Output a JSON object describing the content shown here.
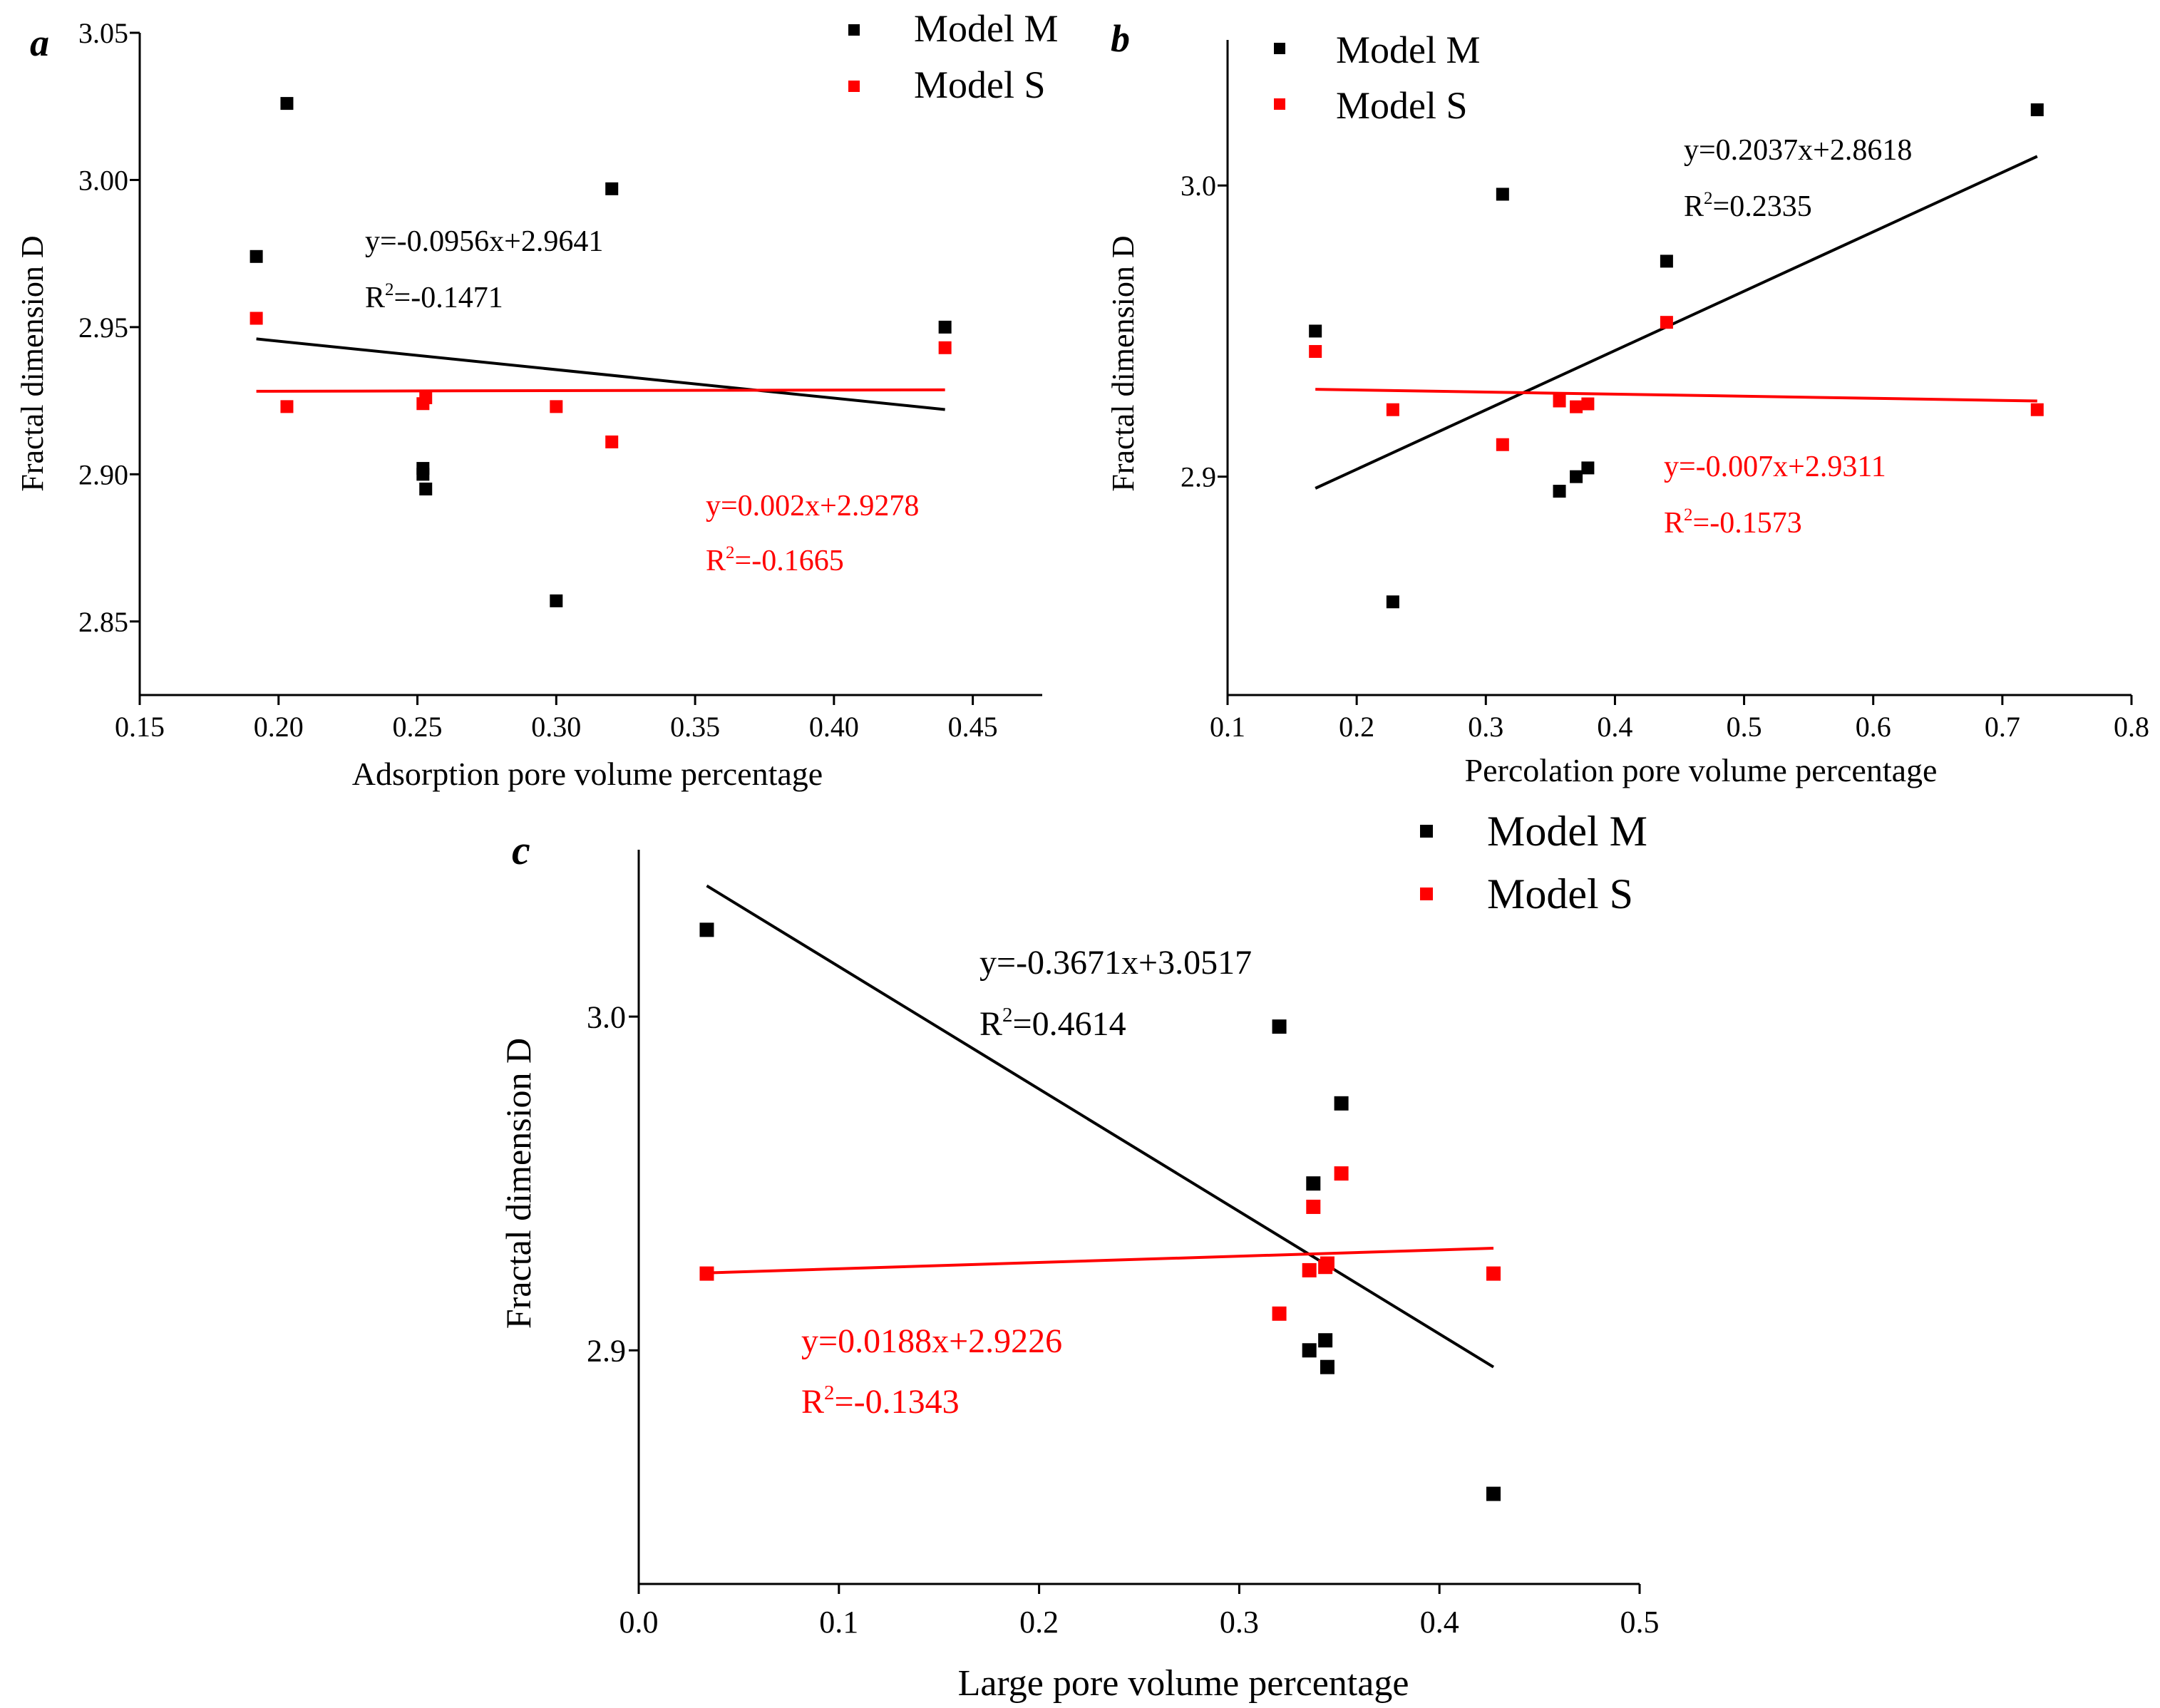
{
  "colors": {
    "black": "#000000",
    "red": "#ff0000"
  },
  "chart_data": [
    {
      "panel": "a",
      "type": "scatter",
      "xlabel": "Adsorption pore volume percentage",
      "ylabel": "Fractal dimension D",
      "xlim": [
        0.15,
        0.475
      ],
      "ylim": [
        2.825,
        3.05
      ],
      "xticks": [
        0.15,
        0.2,
        0.25,
        0.3,
        0.35,
        0.4,
        0.45
      ],
      "xtick_labels": [
        "0.15",
        "0.20",
        "0.25",
        "0.30",
        "0.35",
        "0.40",
        "0.45"
      ],
      "yticks": [
        2.85,
        2.9,
        2.95,
        3.0,
        3.05
      ],
      "ytick_labels": [
        "2.85",
        "2.90",
        "2.95",
        "3.00",
        "3.05"
      ],
      "legend": "top-right",
      "series": [
        {
          "name": "Model M",
          "color": "#000000",
          "points": [
            [
              0.192,
              2.974
            ],
            [
              0.203,
              3.026
            ],
            [
              0.252,
              2.902
            ],
            [
              0.252,
              2.9
            ],
            [
              0.253,
              2.895
            ],
            [
              0.3,
              2.857
            ],
            [
              0.32,
              2.997
            ],
            [
              0.44,
              2.95
            ]
          ],
          "fit": {
            "x": [
              0.192,
              0.44
            ],
            "y": [
              2.946,
              2.922
            ]
          },
          "equation": "y=-0.0956x+2.9641",
          "r2_label": "R",
          "r2_value": "=-0.1471"
        },
        {
          "name": "Model S",
          "color": "#ff0000",
          "points": [
            [
              0.192,
              2.953
            ],
            [
              0.203,
              2.923
            ],
            [
              0.252,
              2.924
            ],
            [
              0.253,
              2.926
            ],
            [
              0.3,
              2.923
            ],
            [
              0.32,
              2.911
            ],
            [
              0.44,
              2.943
            ]
          ],
          "fit": {
            "x": [
              0.192,
              0.44
            ],
            "y": [
              2.9282,
              2.9287
            ]
          },
          "equation": "y=0.002x+2.9278",
          "r2_label": "R",
          "r2_value": "=-0.1665"
        }
      ]
    },
    {
      "panel": "b",
      "type": "scatter",
      "xlabel": "Percolation pore volume percentage",
      "ylabel": "Fractal dimension D",
      "xlim": [
        0.1,
        0.8
      ],
      "ylim": [
        2.825,
        3.05
      ],
      "xticks": [
        0.1,
        0.2,
        0.3,
        0.4,
        0.5,
        0.6,
        0.7,
        0.8
      ],
      "xtick_labels": [
        "0.1",
        "0.2",
        "0.3",
        "0.4",
        "0.5",
        "0.6",
        "0.7",
        "0.8"
      ],
      "yticks": [
        2.9,
        3.0
      ],
      "ytick_labels": [
        "2.9",
        "3.0"
      ],
      "legend": "top-left",
      "series": [
        {
          "name": "Model M",
          "color": "#000000",
          "points": [
            [
              0.168,
              2.95
            ],
            [
              0.228,
              2.857
            ],
            [
              0.313,
              2.997
            ],
            [
              0.357,
              2.895
            ],
            [
              0.37,
              2.9
            ],
            [
              0.379,
              2.903
            ],
            [
              0.44,
              2.974
            ],
            [
              0.727,
              3.026
            ]
          ],
          "fit": {
            "x": [
              0.168,
              0.727
            ],
            "y": [
              2.896,
              3.01
            ]
          },
          "equation": "y=0.2037x+2.8618",
          "r2_label": "R",
          "r2_value": "=0.2335"
        },
        {
          "name": "Model S",
          "color": "#ff0000",
          "points": [
            [
              0.168,
              2.943
            ],
            [
              0.228,
              2.923
            ],
            [
              0.313,
              2.911
            ],
            [
              0.357,
              2.926
            ],
            [
              0.37,
              2.924
            ],
            [
              0.379,
              2.925
            ],
            [
              0.44,
              2.953
            ],
            [
              0.727,
              2.923
            ]
          ],
          "fit": {
            "x": [
              0.168,
              0.727
            ],
            "y": [
              2.93,
              2.926
            ]
          },
          "equation": "y=-0.007x+2.9311",
          "r2_label": "R",
          "r2_value": "=-0.1573"
        }
      ]
    },
    {
      "panel": "c",
      "type": "scatter",
      "xlabel": "Large pore volume percentage",
      "ylabel": "Fractal dimension D",
      "xlim": [
        0.0,
        0.5
      ],
      "ylim": [
        2.83,
        3.05
      ],
      "xticks": [
        0.0,
        0.1,
        0.2,
        0.3,
        0.4,
        0.5
      ],
      "xtick_labels": [
        "0.0",
        "0.1",
        "0.2",
        "0.3",
        "0.4",
        "0.5"
      ],
      "yticks": [
        2.9,
        3.0
      ],
      "ytick_labels": [
        "2.9",
        "3.0"
      ],
      "legend": "top-right",
      "series": [
        {
          "name": "Model M",
          "color": "#000000",
          "points": [
            [
              0.034,
              3.026
            ],
            [
              0.32,
              2.997
            ],
            [
              0.335,
              2.9
            ],
            [
              0.337,
              2.95
            ],
            [
              0.343,
              2.903
            ],
            [
              0.344,
              2.895
            ],
            [
              0.351,
              2.974
            ],
            [
              0.427,
              2.857
            ]
          ],
          "fit": {
            "x": [
              0.034,
              0.427
            ],
            "y": [
              3.0392,
              2.895
            ]
          },
          "equation": "y=-0.3671x+3.0517",
          "r2_label": "R",
          "r2_value": "=0.4614"
        },
        {
          "name": "Model S",
          "color": "#ff0000",
          "points": [
            [
              0.034,
              2.923
            ],
            [
              0.32,
              2.911
            ],
            [
              0.335,
              2.924
            ],
            [
              0.337,
              2.943
            ],
            [
              0.343,
              2.925
            ],
            [
              0.344,
              2.926
            ],
            [
              0.351,
              2.953
            ],
            [
              0.427,
              2.923
            ]
          ],
          "fit": {
            "x": [
              0.034,
              0.427
            ],
            "y": [
              2.9232,
              2.9306
            ]
          },
          "equation": "y=0.0188x+2.9226",
          "r2_label": "R",
          "r2_value": "=-0.1343"
        }
      ]
    }
  ]
}
